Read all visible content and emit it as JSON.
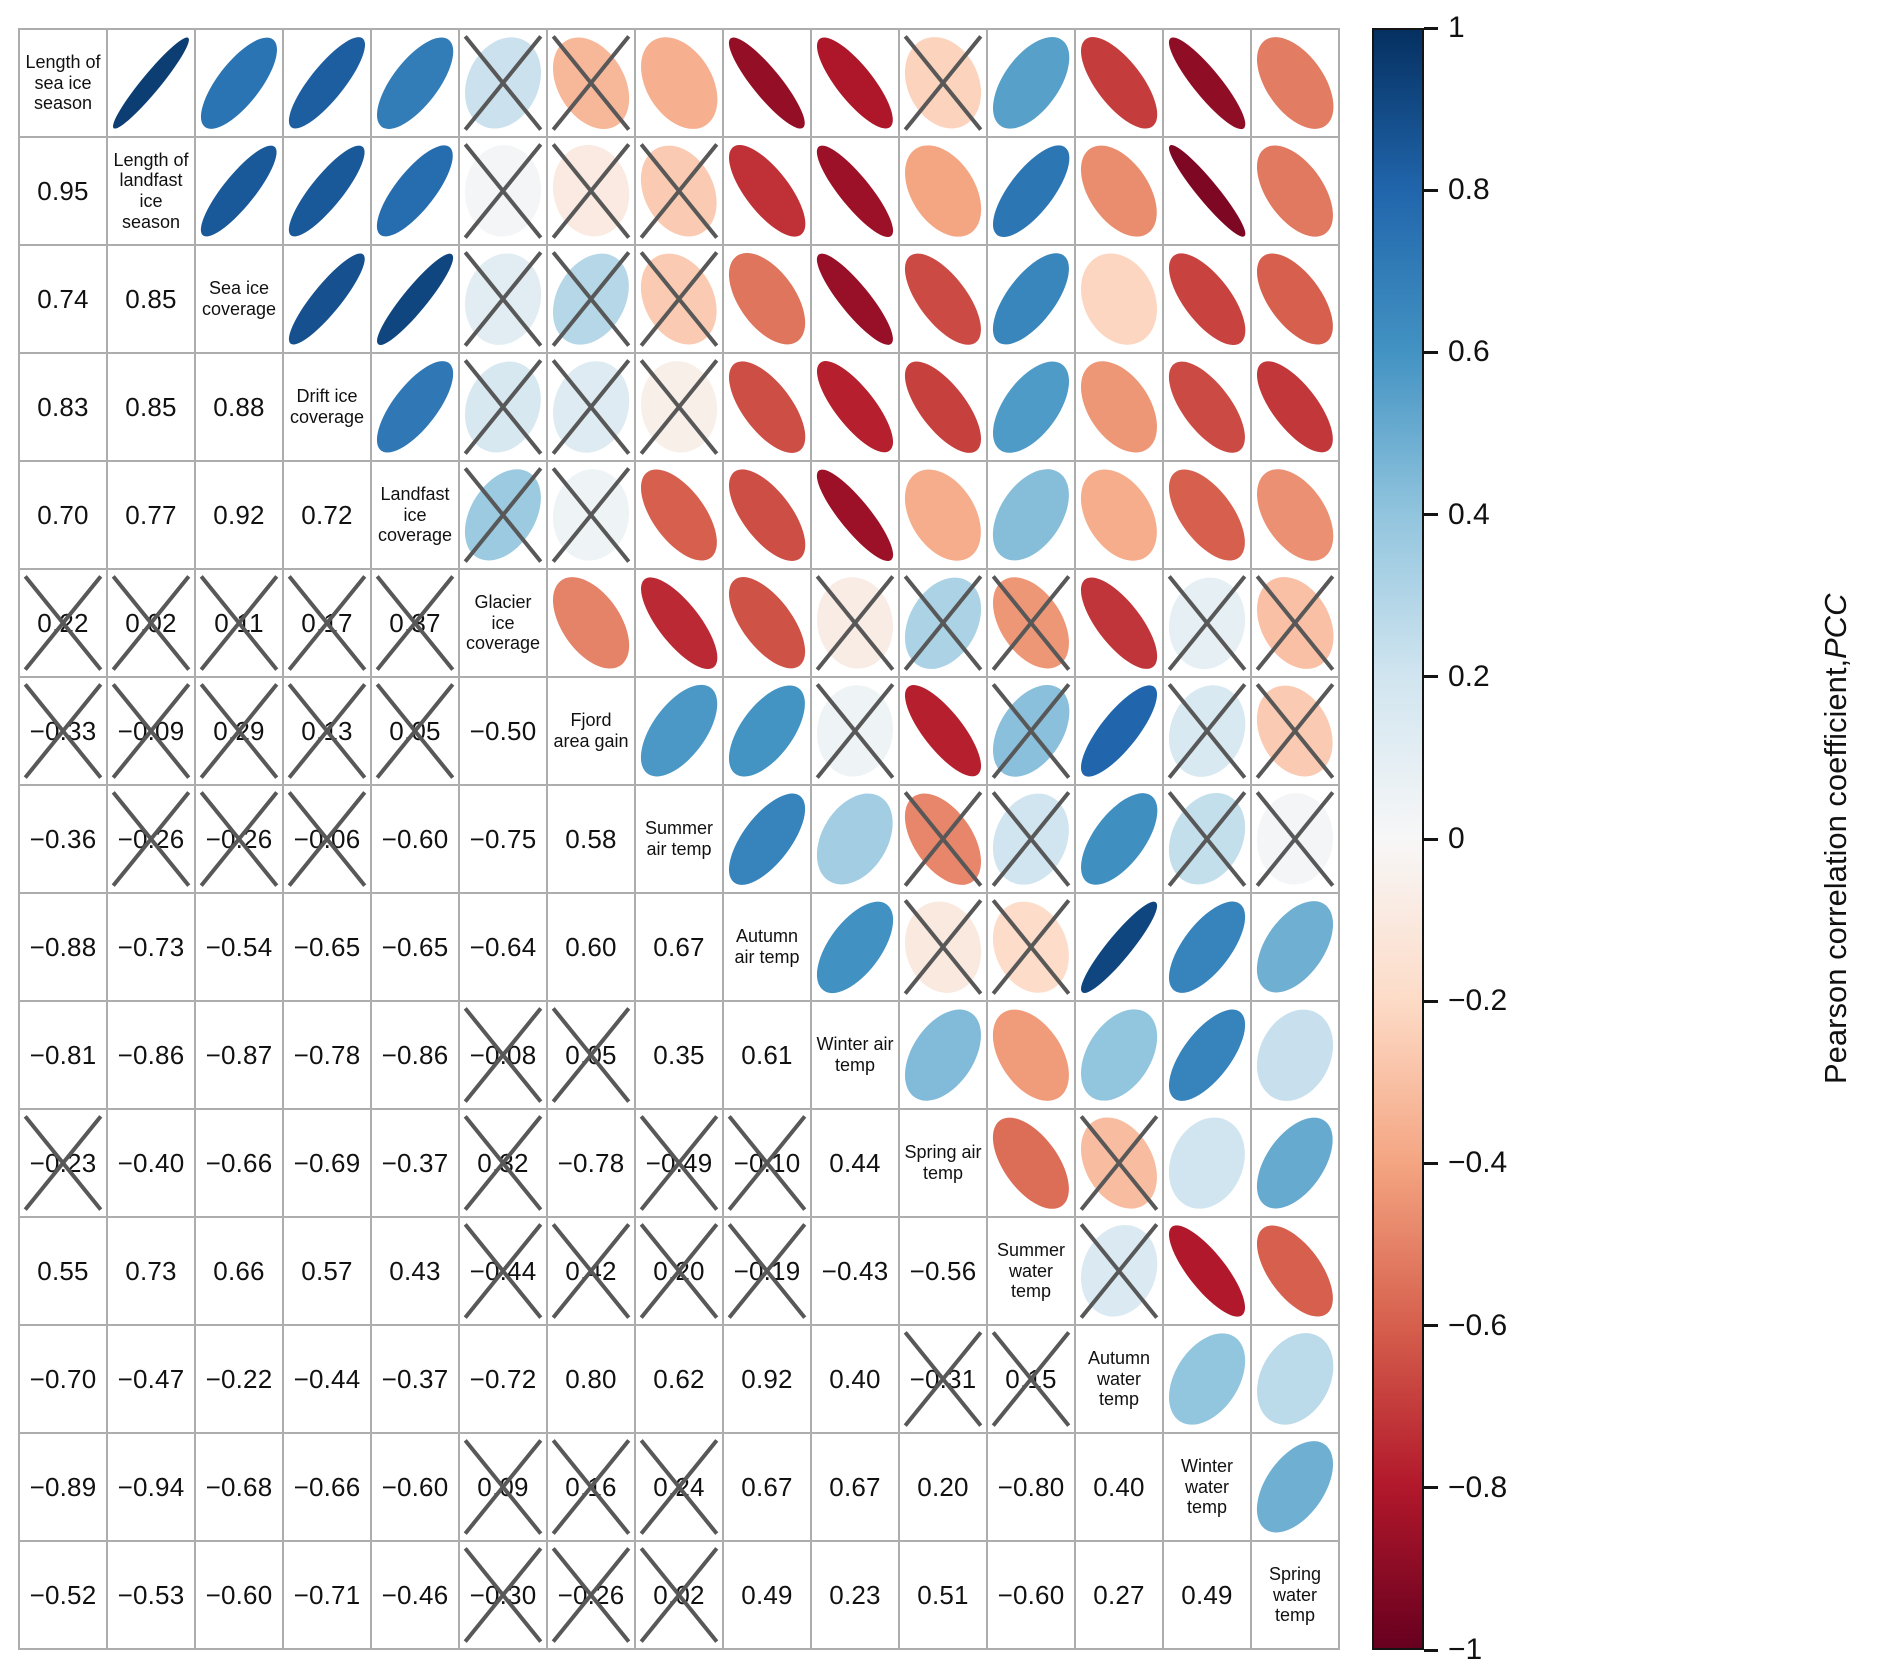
{
  "chart_data": {
    "type": "heatmap",
    "subtype": "correlation-ellipse-matrix",
    "description": "Symmetric Pearson correlation matrix: lower triangle shows coefficient values, upper triangle shows orientation/color-coded ellipses; crossed cells are not significant.",
    "variables": [
      "Length of sea ice season",
      "Length of landfast ice season",
      "Sea ice coverage",
      "Drift ice coverage",
      "Landfast ice coverage",
      "Glacier ice coverage",
      "Fjord area gain",
      "Summer air temp",
      "Autumn air temp",
      "Winter air temp",
      "Spring air temp",
      "Summer water temp",
      "Autumn water temp",
      "Winter water temp",
      "Spring water temp"
    ],
    "lower_triangle_note": "rows of [value, significant(1)/not-significant-crossed(0)]; row r holds correlations with variables 0..r-1",
    "lower_triangle": [
      [],
      [
        [
          0.95,
          1
        ]
      ],
      [
        [
          0.74,
          1
        ],
        [
          0.85,
          1
        ]
      ],
      [
        [
          0.83,
          1
        ],
        [
          0.85,
          1
        ],
        [
          0.88,
          1
        ]
      ],
      [
        [
          0.7,
          1
        ],
        [
          0.77,
          1
        ],
        [
          0.92,
          1
        ],
        [
          0.72,
          1
        ]
      ],
      [
        [
          0.22,
          0
        ],
        [
          0.02,
          0
        ],
        [
          0.11,
          0
        ],
        [
          0.17,
          0
        ],
        [
          0.37,
          0
        ]
      ],
      [
        [
          -0.33,
          0
        ],
        [
          -0.09,
          0
        ],
        [
          0.29,
          0
        ],
        [
          0.13,
          0
        ],
        [
          0.05,
          0
        ],
        [
          -0.5,
          1
        ]
      ],
      [
        [
          -0.36,
          1
        ],
        [
          -0.26,
          0
        ],
        [
          -0.26,
          0
        ],
        [
          -0.06,
          0
        ],
        [
          -0.6,
          1
        ],
        [
          -0.75,
          1
        ],
        [
          0.58,
          1
        ]
      ],
      [
        [
          -0.88,
          1
        ],
        [
          -0.73,
          1
        ],
        [
          -0.54,
          1
        ],
        [
          -0.65,
          1
        ],
        [
          -0.65,
          1
        ],
        [
          -0.64,
          1
        ],
        [
          0.6,
          1
        ],
        [
          0.67,
          1
        ]
      ],
      [
        [
          -0.81,
          1
        ],
        [
          -0.86,
          1
        ],
        [
          -0.87,
          1
        ],
        [
          -0.78,
          1
        ],
        [
          -0.86,
          1
        ],
        [
          -0.08,
          0
        ],
        [
          0.05,
          0
        ],
        [
          0.35,
          1
        ],
        [
          0.61,
          1
        ]
      ],
      [
        [
          -0.23,
          0
        ],
        [
          -0.4,
          1
        ],
        [
          -0.66,
          1
        ],
        [
          -0.69,
          1
        ],
        [
          -0.37,
          1
        ],
        [
          0.32,
          0
        ],
        [
          -0.78,
          1
        ],
        [
          -0.49,
          0
        ],
        [
          -0.1,
          0
        ],
        [
          0.44,
          1
        ]
      ],
      [
        [
          0.55,
          1
        ],
        [
          0.73,
          1
        ],
        [
          0.66,
          1
        ],
        [
          0.57,
          1
        ],
        [
          0.43,
          1
        ],
        [
          -0.44,
          0
        ],
        [
          0.42,
          0
        ],
        [
          0.2,
          0
        ],
        [
          -0.19,
          0
        ],
        [
          -0.43,
          1
        ],
        [
          -0.56,
          1
        ]
      ],
      [
        [
          -0.7,
          1
        ],
        [
          -0.47,
          1
        ],
        [
          -0.22,
          1
        ],
        [
          -0.44,
          1
        ],
        [
          -0.37,
          1
        ],
        [
          -0.72,
          1
        ],
        [
          0.8,
          1
        ],
        [
          0.62,
          1
        ],
        [
          0.92,
          1
        ],
        [
          0.4,
          1
        ],
        [
          -0.31,
          0
        ],
        [
          0.15,
          0
        ]
      ],
      [
        [
          -0.89,
          1
        ],
        [
          -0.94,
          1
        ],
        [
          -0.68,
          1
        ],
        [
          -0.66,
          1
        ],
        [
          -0.6,
          1
        ],
        [
          0.09,
          0
        ],
        [
          0.16,
          0
        ],
        [
          0.24,
          0
        ],
        [
          0.67,
          1
        ],
        [
          0.67,
          1
        ],
        [
          0.2,
          1
        ],
        [
          -0.8,
          1
        ],
        [
          0.4,
          1
        ]
      ],
      [
        [
          -0.52,
          1
        ],
        [
          -0.53,
          1
        ],
        [
          -0.6,
          1
        ],
        [
          -0.71,
          1
        ],
        [
          -0.46,
          1
        ],
        [
          -0.3,
          0
        ],
        [
          -0.26,
          0
        ],
        [
          0.02,
          0
        ],
        [
          0.49,
          1
        ],
        [
          0.23,
          1
        ],
        [
          0.51,
          1
        ],
        [
          -0.6,
          1
        ],
        [
          0.27,
          1
        ],
        [
          0.49,
          1
        ]
      ]
    ],
    "colorbar": {
      "label": "Pearson correlation coefficient, ",
      "label_abbr": "PCC",
      "range": [
        -1,
        1
      ],
      "ticks": [
        "1",
        "0.8",
        "0.6",
        "0.4",
        "0.2",
        "0",
        "−0.2",
        "−0.4",
        "−0.6",
        "−0.8",
        "−1"
      ],
      "tick_values": [
        1,
        0.8,
        0.6,
        0.4,
        0.2,
        0,
        -0.2,
        -0.4,
        -0.6,
        -0.8,
        -1
      ]
    },
    "colormap": [
      [
        -1.0,
        "#67001f"
      ],
      [
        -0.8,
        "#b2182b"
      ],
      [
        -0.6,
        "#d6604d"
      ],
      [
        -0.4,
        "#f4a582"
      ],
      [
        -0.2,
        "#fddbc7"
      ],
      [
        0.0,
        "#f7f7f7"
      ],
      [
        0.2,
        "#d1e5f0"
      ],
      [
        0.4,
        "#92c5de"
      ],
      [
        0.6,
        "#4393c3"
      ],
      [
        0.8,
        "#2166ac"
      ],
      [
        1.0,
        "#053061"
      ]
    ],
    "styles": {
      "cross_color": "#585858",
      "grid_color": "#adadad"
    }
  }
}
